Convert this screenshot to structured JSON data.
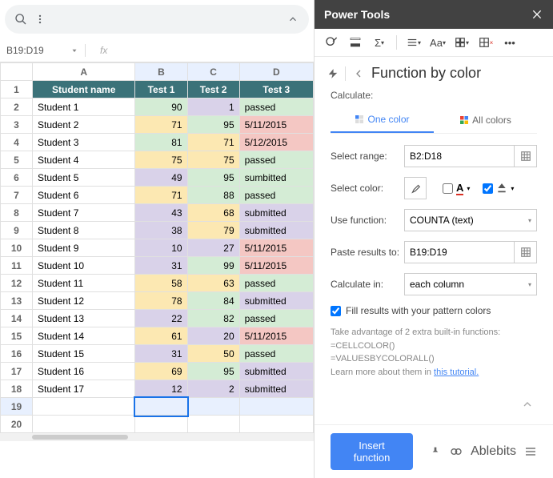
{
  "sheet": {
    "namebox": "B19:D19",
    "colHeaders": [
      "A",
      "B",
      "C",
      "D"
    ],
    "headerRow": [
      "Student name",
      "Test 1",
      "Test 2",
      "Test 3"
    ],
    "rows": [
      {
        "n": "1",
        "a": "Student 1",
        "b": "90",
        "c": "1",
        "d": "passed",
        "bc": "green",
        "cc": "purple",
        "dc": "green"
      },
      {
        "n": "2",
        "a": "Student 2",
        "b": "71",
        "c": "95",
        "d": "5/11/2015",
        "bc": "yellow",
        "cc": "green",
        "dc": "pink"
      },
      {
        "n": "3",
        "a": "Student 3",
        "b": "81",
        "c": "71",
        "d": "5/12/2015",
        "bc": "green",
        "cc": "yellow",
        "dc": "pink"
      },
      {
        "n": "4",
        "a": "Student 4",
        "b": "75",
        "c": "75",
        "d": "passed",
        "bc": "yellow",
        "cc": "yellow",
        "dc": "green"
      },
      {
        "n": "5",
        "a": "Student 5",
        "b": "49",
        "c": "95",
        "d": "sumbitted",
        "bc": "purple",
        "cc": "green",
        "dc": "green"
      },
      {
        "n": "6",
        "a": "Student 6",
        "b": "71",
        "c": "88",
        "d": "passed",
        "bc": "yellow",
        "cc": "green",
        "dc": "green"
      },
      {
        "n": "7",
        "a": "Student 7",
        "b": "43",
        "c": "68",
        "d": "submitted",
        "bc": "purple",
        "cc": "yellow",
        "dc": "purple"
      },
      {
        "n": "8",
        "a": "Student 8",
        "b": "38",
        "c": "79",
        "d": "submitted",
        "bc": "purple",
        "cc": "yellow",
        "dc": "purple"
      },
      {
        "n": "9",
        "a": "Student 9",
        "b": "10",
        "c": "27",
        "d": "5/11/2015",
        "bc": "purple",
        "cc": "purple",
        "dc": "pink"
      },
      {
        "n": "10",
        "a": "Student 10",
        "b": "31",
        "c": "99",
        "d": "5/11/2015",
        "bc": "purple",
        "cc": "green",
        "dc": "pink"
      },
      {
        "n": "11",
        "a": "Student 11",
        "b": "58",
        "c": "63",
        "d": "passed",
        "bc": "yellow",
        "cc": "yellow",
        "dc": "green"
      },
      {
        "n": "12",
        "a": "Student 12",
        "b": "78",
        "c": "84",
        "d": "submitted",
        "bc": "yellow",
        "cc": "green",
        "dc": "purple"
      },
      {
        "n": "13",
        "a": "Student 13",
        "b": "22",
        "c": "82",
        "d": "passed",
        "bc": "purple",
        "cc": "green",
        "dc": "green"
      },
      {
        "n": "14",
        "a": "Student 14",
        "b": "61",
        "c": "20",
        "d": "5/11/2015",
        "bc": "yellow",
        "cc": "purple",
        "dc": "pink"
      },
      {
        "n": "15",
        "a": "Student 15",
        "b": "31",
        "c": "50",
        "d": "passed",
        "bc": "purple",
        "cc": "yellow",
        "dc": "green"
      },
      {
        "n": "16",
        "a": "Student 16",
        "b": "69",
        "c": "95",
        "d": "submitted",
        "bc": "yellow",
        "cc": "green",
        "dc": "purple"
      },
      {
        "n": "17",
        "a": "Student 17",
        "b": "12",
        "c": "2",
        "d": "submitted",
        "bc": "purple",
        "cc": "purple",
        "dc": "purple"
      }
    ],
    "emptyRows": [
      "19",
      "20"
    ]
  },
  "panel": {
    "title": "Power Tools",
    "crumb": "Function by color",
    "calculateLabel": "Calculate:",
    "tab1": "One color",
    "tab2": "All colors",
    "selectRangeLbl": "Select range:",
    "selectRangeVal": "B2:D18",
    "selectColorLbl": "Select color:",
    "useFuncLbl": "Use function:",
    "useFuncVal": "COUNTA (text)",
    "pasteLbl": "Paste results to:",
    "pasteVal": "B19:D19",
    "calcInLbl": "Calculate in:",
    "calcInVal": "each column",
    "fillChk": "Fill results with your pattern colors",
    "info1": "Take advantage of 2 extra built-in functions:",
    "info2": "=CELLCOLOR()",
    "info3": "=VALUESBYCOLORALL()",
    "info4": "Learn more about them in ",
    "infoLink": "this tutorial.",
    "insertBtn": "Insert function",
    "brand": "Ablebits"
  }
}
